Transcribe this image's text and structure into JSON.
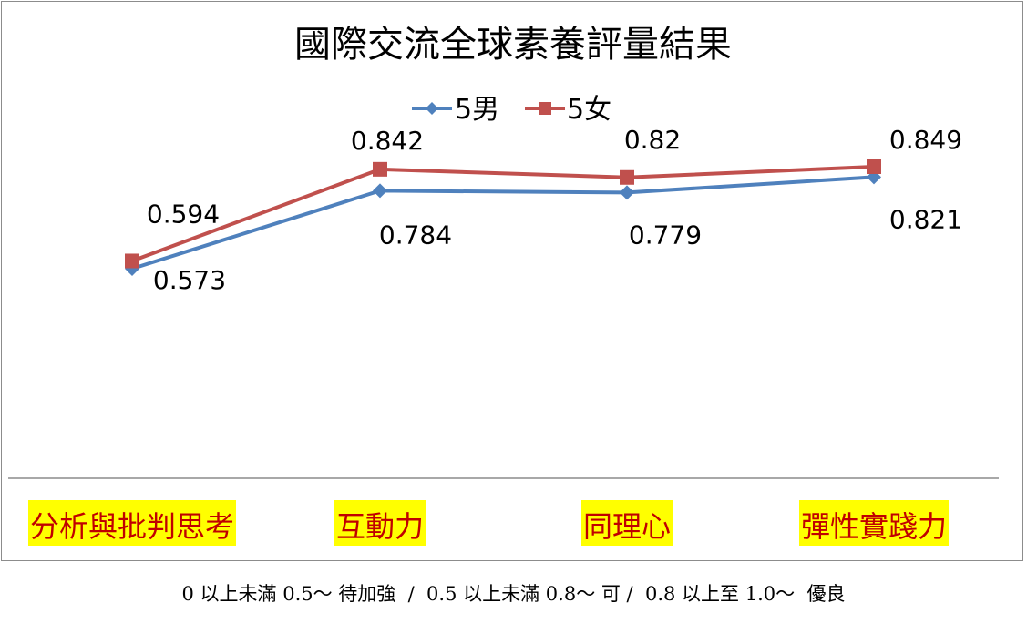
{
  "chart_data": {
    "type": "line",
    "title": "國際交流全球素養評量結果",
    "categories": [
      "分析與批判思考",
      "互動力",
      "同理心",
      "彈性實踐力"
    ],
    "series": [
      {
        "name": "5男",
        "values": [
          0.573,
          0.784,
          0.779,
          0.821
        ],
        "color": "#4f81bd",
        "marker": "diamond"
      },
      {
        "name": "5女",
        "values": [
          0.594,
          0.842,
          0.82,
          0.849
        ],
        "color": "#c0504d",
        "marker": "square"
      }
    ],
    "data_labels": {
      "5男": [
        "0.573",
        "0.784",
        "0.779",
        "0.821"
      ],
      "5女": [
        "0.594",
        "0.842",
        "0.82",
        "0.849"
      ]
    },
    "xlabel": "",
    "ylabel": "",
    "legend": "top",
    "grid": false,
    "category_highlight_color": "#ffff00",
    "category_text_color": "#c00000"
  },
  "footer": {
    "scale_text": "0 以上未滿 0.5～ 待加強  /  0.5 以上未滿 0.8～ 可 /  0.8 以上至 1.0～  優良"
  }
}
